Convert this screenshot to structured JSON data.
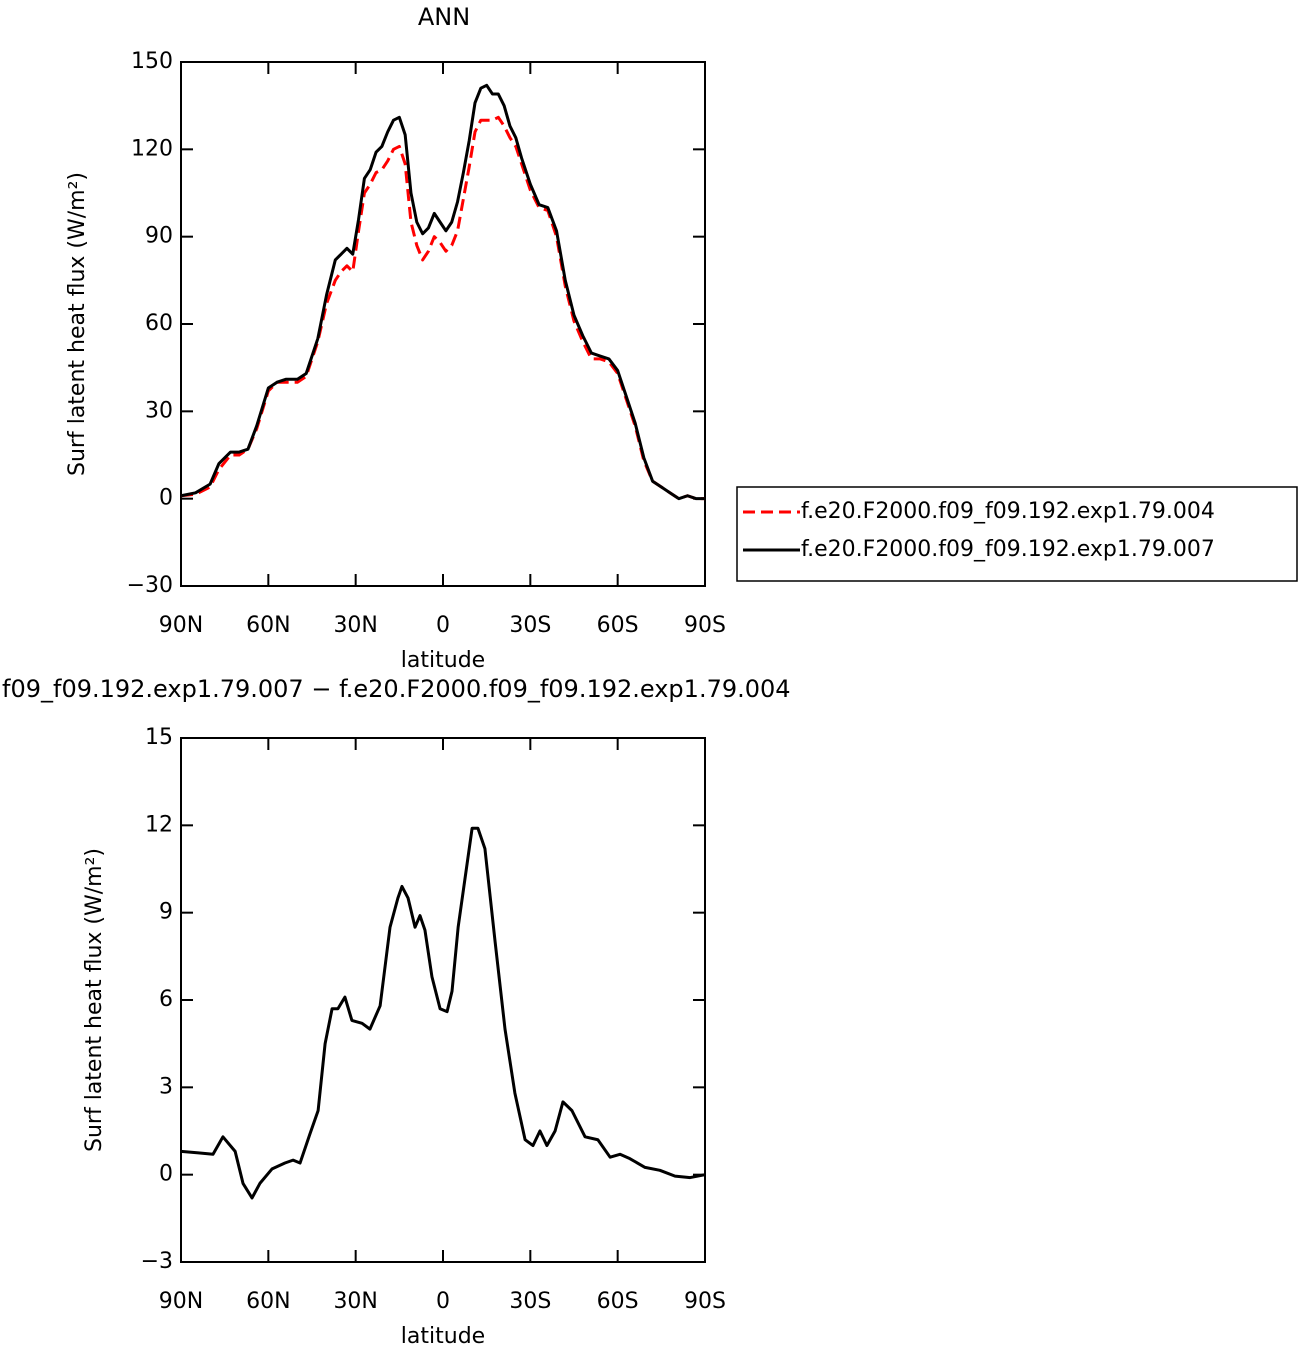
{
  "chart_data": [
    {
      "type": "line",
      "title": "ANN",
      "xlabel": "latitude",
      "ylabel": "Surf latent heat flux (W/m²)",
      "xlim": [
        90,
        -90
      ],
      "xticks": [
        {
          "value": 90,
          "label": "90N"
        },
        {
          "value": 60,
          "label": "60N"
        },
        {
          "value": 30,
          "label": "30N"
        },
        0,
        {
          "value": -30,
          "label": "30S"
        },
        {
          "value": -60,
          "label": "60S"
        },
        {
          "value": -90,
          "label": "90S"
        }
      ],
      "ylim": [
        -30,
        150
      ],
      "yticks": [
        {
          "value": -30,
          "label": "−30"
        },
        0,
        30,
        60,
        90,
        120,
        150
      ],
      "legend": "right",
      "x": [
        90,
        85,
        80,
        77,
        73,
        70,
        67,
        64,
        60,
        57,
        54,
        50,
        47,
        43,
        40,
        37,
        35,
        33,
        31,
        29,
        27,
        25,
        23,
        21,
        19,
        17,
        15,
        13,
        11,
        9,
        7,
        5,
        3,
        1,
        -1,
        -3,
        -5,
        -7,
        -9,
        -11,
        -13,
        -15,
        -17,
        -19,
        -21,
        -23,
        -25,
        -27,
        -30,
        -33,
        -36,
        -39,
        -42,
        -45,
        -48,
        -51,
        -54,
        -57,
        -60,
        -63,
        -66,
        -69,
        -72,
        -75,
        -78,
        -81,
        -84,
        -87,
        -90
      ],
      "series": [
        {
          "name": "f.e20.F2000.f09_f09.192.exp1.79.004",
          "color": "#ff0000",
          "dash": true,
          "values": [
            1,
            1.5,
            4,
            10,
            15,
            15,
            17,
            24,
            37,
            40,
            40,
            40,
            42,
            54,
            67,
            75,
            78,
            80,
            78,
            92,
            105,
            108,
            112,
            113,
            116,
            120,
            121,
            115,
            95,
            87,
            82,
            85,
            90,
            88,
            85,
            87,
            92,
            103,
            114,
            126,
            130,
            130,
            130,
            131,
            128,
            124,
            121,
            115,
            106,
            100,
            99,
            90,
            73,
            61,
            54,
            48,
            48,
            47,
            43,
            34,
            25,
            13,
            6,
            4,
            2,
            0,
            1,
            0,
            0
          ]
        },
        {
          "name": "f.e20.F2000.f09_f09.192.exp1.79.007",
          "color": "#000000",
          "dash": false,
          "values": [
            1,
            2,
            5,
            12,
            16,
            16,
            17,
            25,
            38,
            40,
            41,
            41,
            43,
            55,
            70,
            82,
            84,
            86,
            84,
            96,
            110,
            113,
            119,
            121,
            126,
            130,
            131,
            125,
            105,
            95,
            91,
            93,
            98,
            95,
            92,
            95,
            102,
            112,
            123,
            136,
            141,
            142,
            139,
            139,
            135,
            128,
            124,
            117,
            108,
            101,
            100,
            92,
            75,
            63,
            56,
            50,
            49,
            48,
            44,
            35,
            26,
            14,
            6,
            4,
            2,
            0,
            1,
            0,
            0
          ]
        }
      ]
    },
    {
      "type": "line",
      "title": "f09_f09.192.exp1.79.007 − f.e20.F2000.f09_f09.192.exp1.79.004",
      "xlabel": "latitude",
      "ylabel": "Surf latent heat flux (W/m²)",
      "xlim": [
        90,
        -90
      ],
      "xticks": [
        {
          "value": 90,
          "label": "90N"
        },
        {
          "value": 60,
          "label": "60N"
        },
        {
          "value": 30,
          "label": "30N"
        },
        0,
        {
          "value": -30,
          "label": "30S"
        },
        {
          "value": -60,
          "label": "60S"
        },
        {
          "value": -90,
          "label": "90S"
        }
      ],
      "ylim": [
        -3,
        15
      ],
      "yticks": [
        {
          "value": -3,
          "label": "−3"
        },
        0,
        3,
        6,
        9,
        12,
        15
      ],
      "x": [
        90,
        84,
        79,
        75.6,
        71.4,
        68.7,
        65.6,
        62.9,
        58.7,
        54.3,
        51.5,
        49.1,
        45.7,
        42.9,
        40.5,
        38.1,
        36.1,
        33.7,
        31.3,
        27.8,
        25.1,
        21.6,
        18.2,
        15.5,
        14.1,
        12,
        9.6,
        7.9,
        6.2,
        3.8,
        1,
        -1.4,
        -3.1,
        -5.2,
        -7.6,
        -10,
        -12,
        -14.4,
        -17.9,
        -21.3,
        -24.7,
        -28.2,
        -30.9,
        -33.3,
        -35.7,
        -38.5,
        -41.2,
        -44.3,
        -48.8,
        -53.2,
        -57.4,
        -60.8,
        -64.2,
        -69.4,
        -74.5,
        -79.7,
        -84.9,
        -90
      ],
      "series": [
        {
          "name": null,
          "color": "#000000",
          "dash": false,
          "values": [
            0.8,
            0.75,
            0.7,
            1.3,
            0.8,
            -0.3,
            -0.8,
            -0.3,
            0.2,
            0.4,
            0.5,
            0.4,
            1.4,
            2.2,
            4.5,
            5.7,
            5.7,
            6.1,
            5.3,
            5.2,
            5.0,
            5.8,
            8.5,
            9.5,
            9.9,
            9.5,
            8.5,
            8.9,
            8.4,
            6.8,
            5.7,
            5.6,
            6.3,
            8.5,
            10.2,
            11.9,
            11.9,
            11.2,
            8.0,
            5.0,
            2.8,
            1.2,
            1.0,
            1.5,
            1.0,
            1.5,
            2.5,
            2.2,
            1.3,
            1.2,
            0.6,
            0.7,
            0.55,
            0.25,
            0.15,
            -0.05,
            -0.1,
            0
          ]
        }
      ]
    }
  ]
}
